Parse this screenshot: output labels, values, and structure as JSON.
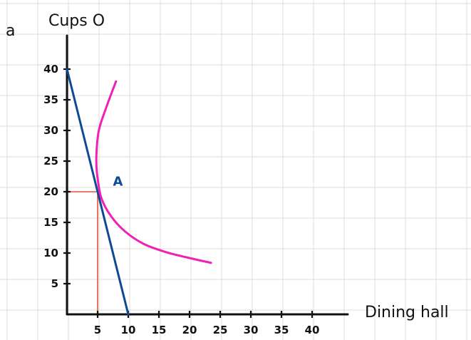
{
  "chart_data": {
    "type": "line",
    "title": "",
    "corner_mark": "a",
    "ylabel": "Cups O",
    "xlabel": "Dining hall",
    "xlim": [
      0,
      46
    ],
    "ylim": [
      0,
      46
    ],
    "x_ticks": [
      5,
      10,
      15,
      20,
      25,
      30,
      35,
      40
    ],
    "y_ticks": [
      5,
      10,
      15,
      20,
      25,
      30,
      35,
      40
    ],
    "grid": true,
    "series": [
      {
        "kind": "budget-line",
        "color": "#0d4a94",
        "points": [
          [
            0,
            40
          ],
          [
            10,
            0
          ]
        ]
      },
      {
        "kind": "indifference-curve",
        "color": "#f021b4",
        "points": [
          [
            8,
            38
          ],
          [
            6.5,
            34
          ],
          [
            5.2,
            30
          ],
          [
            4.8,
            26
          ],
          [
            4.9,
            23
          ],
          [
            5.6,
            19
          ],
          [
            7.2,
            16
          ],
          [
            9.5,
            13.5
          ],
          [
            12.5,
            11.5
          ],
          [
            16,
            10.2
          ],
          [
            19.5,
            9.3
          ],
          [
            23.5,
            8.4
          ]
        ]
      }
    ],
    "guides": {
      "color": "#e8513a",
      "point": [
        5,
        20
      ]
    },
    "annotations": [
      {
        "text": "A",
        "x": 7.5,
        "y": 21,
        "color": "#0d4a94"
      }
    ]
  }
}
